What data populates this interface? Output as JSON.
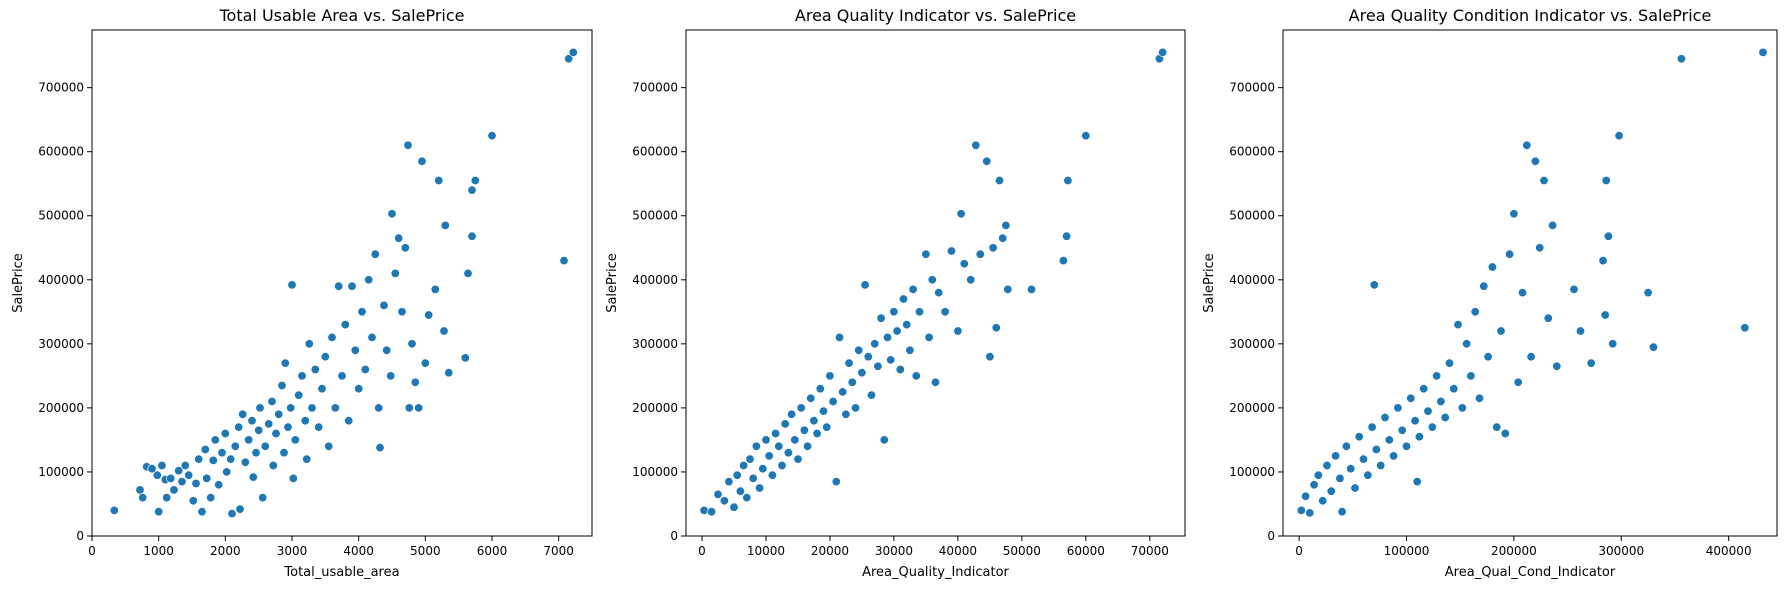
{
  "chart_data": [
    {
      "type": "scatter",
      "title": "Total Usable Area vs. SalePrice",
      "xlabel": "Total_usable_area",
      "ylabel": "SalePrice",
      "xlim": [
        0,
        7500
      ],
      "ylim": [
        0,
        790000
      ],
      "xticks": [
        0,
        1000,
        2000,
        3000,
        4000,
        5000,
        6000,
        7000
      ],
      "yticks": [
        0,
        100000,
        200000,
        300000,
        400000,
        500000,
        600000,
        700000
      ],
      "marker_color": "#1f77b4",
      "grid": false,
      "points": [
        [
          334,
          40000
        ],
        [
          720,
          72000
        ],
        [
          760,
          60000
        ],
        [
          820,
          108000
        ],
        [
          900,
          105000
        ],
        [
          980,
          95000
        ],
        [
          1000,
          38000
        ],
        [
          1050,
          110000
        ],
        [
          1100,
          88000
        ],
        [
          1120,
          60000
        ],
        [
          1180,
          90000
        ],
        [
          1230,
          72000
        ],
        [
          1300,
          102000
        ],
        [
          1350,
          85000
        ],
        [
          1400,
          110000
        ],
        [
          1450,
          95000
        ],
        [
          1520,
          55000
        ],
        [
          1560,
          82000
        ],
        [
          1600,
          120000
        ],
        [
          1650,
          38000
        ],
        [
          1700,
          135000
        ],
        [
          1720,
          90000
        ],
        [
          1780,
          60000
        ],
        [
          1820,
          118000
        ],
        [
          1850,
          150000
        ],
        [
          1900,
          80000
        ],
        [
          1950,
          130000
        ],
        [
          2000,
          160000
        ],
        [
          2020,
          100000
        ],
        [
          2080,
          120000
        ],
        [
          2100,
          35000
        ],
        [
          2150,
          140000
        ],
        [
          2200,
          170000
        ],
        [
          2220,
          42000
        ],
        [
          2260,
          190000
        ],
        [
          2300,
          115000
        ],
        [
          2350,
          150000
        ],
        [
          2400,
          180000
        ],
        [
          2420,
          92000
        ],
        [
          2460,
          130000
        ],
        [
          2500,
          165000
        ],
        [
          2520,
          200000
        ],
        [
          2560,
          60000
        ],
        [
          2600,
          140000
        ],
        [
          2650,
          175000
        ],
        [
          2700,
          210000
        ],
        [
          2720,
          110000
        ],
        [
          2760,
          160000
        ],
        [
          2800,
          190000
        ],
        [
          2850,
          235000
        ],
        [
          2880,
          130000
        ],
        [
          2900,
          270000
        ],
        [
          2940,
          170000
        ],
        [
          2980,
          200000
        ],
        [
          3000,
          392000
        ],
        [
          3020,
          90000
        ],
        [
          3050,
          150000
        ],
        [
          3100,
          220000
        ],
        [
          3150,
          250000
        ],
        [
          3200,
          180000
        ],
        [
          3220,
          120000
        ],
        [
          3260,
          300000
        ],
        [
          3300,
          200000
        ],
        [
          3350,
          260000
        ],
        [
          3400,
          170000
        ],
        [
          3450,
          230000
        ],
        [
          3500,
          280000
        ],
        [
          3550,
          140000
        ],
        [
          3600,
          310000
        ],
        [
          3650,
          200000
        ],
        [
          3700,
          390000
        ],
        [
          3750,
          250000
        ],
        [
          3800,
          330000
        ],
        [
          3850,
          180000
        ],
        [
          3900,
          390000
        ],
        [
          3950,
          290000
        ],
        [
          4000,
          230000
        ],
        [
          4050,
          350000
        ],
        [
          4100,
          260000
        ],
        [
          4150,
          400000
        ],
        [
          4200,
          310000
        ],
        [
          4250,
          440000
        ],
        [
          4300,
          200000
        ],
        [
          4320,
          138000
        ],
        [
          4380,
          360000
        ],
        [
          4420,
          290000
        ],
        [
          4480,
          250000
        ],
        [
          4500,
          503000
        ],
        [
          4550,
          410000
        ],
        [
          4600,
          465000
        ],
        [
          4650,
          350000
        ],
        [
          4700,
          450000
        ],
        [
          4740,
          610000
        ],
        [
          4760,
          200000
        ],
        [
          4800,
          300000
        ],
        [
          4850,
          240000
        ],
        [
          4900,
          200000
        ],
        [
          4950,
          585000
        ],
        [
          5000,
          270000
        ],
        [
          5050,
          345000
        ],
        [
          5150,
          385000
        ],
        [
          5200,
          555000
        ],
        [
          5280,
          320000
        ],
        [
          5300,
          485000
        ],
        [
          5350,
          255000
        ],
        [
          5600,
          278000
        ],
        [
          5640,
          410000
        ],
        [
          5700,
          468000
        ],
        [
          5700,
          540000
        ],
        [
          5750,
          555000
        ],
        [
          6000,
          625000
        ],
        [
          7080,
          430000
        ],
        [
          7150,
          745000
        ],
        [
          7220,
          755000
        ]
      ]
    },
    {
      "type": "scatter",
      "title": "Area Quality Indicator vs. SalePrice",
      "xlabel": "Area_Quality_Indicator",
      "ylabel": "SalePrice",
      "xlim": [
        -2500,
        75500
      ],
      "ylim": [
        0,
        790000
      ],
      "xticks": [
        0,
        10000,
        20000,
        30000,
        40000,
        50000,
        60000,
        70000
      ],
      "yticks": [
        0,
        100000,
        200000,
        300000,
        400000,
        500000,
        600000,
        700000
      ],
      "marker_color": "#1f77b4",
      "grid": false,
      "points": [
        [
          334,
          40000
        ],
        [
          1500,
          38000
        ],
        [
          2500,
          65000
        ],
        [
          3500,
          55000
        ],
        [
          4200,
          85000
        ],
        [
          5000,
          45000
        ],
        [
          5500,
          95000
        ],
        [
          6000,
          70000
        ],
        [
          6500,
          110000
        ],
        [
          7000,
          60000
        ],
        [
          7500,
          120000
        ],
        [
          8000,
          90000
        ],
        [
          8500,
          140000
        ],
        [
          9000,
          75000
        ],
        [
          9500,
          105000
        ],
        [
          10000,
          150000
        ],
        [
          10500,
          125000
        ],
        [
          11000,
          95000
        ],
        [
          11500,
          160000
        ],
        [
          12000,
          140000
        ],
        [
          12500,
          110000
        ],
        [
          13000,
          175000
        ],
        [
          13500,
          130000
        ],
        [
          14000,
          190000
        ],
        [
          14500,
          150000
        ],
        [
          15000,
          120000
        ],
        [
          15500,
          200000
        ],
        [
          16000,
          165000
        ],
        [
          16500,
          140000
        ],
        [
          17000,
          215000
        ],
        [
          17500,
          180000
        ],
        [
          18000,
          160000
        ],
        [
          18500,
          230000
        ],
        [
          19000,
          195000
        ],
        [
          19500,
          170000
        ],
        [
          20000,
          250000
        ],
        [
          20500,
          210000
        ],
        [
          21000,
          85000
        ],
        [
          21500,
          310000
        ],
        [
          22000,
          225000
        ],
        [
          22500,
          190000
        ],
        [
          23000,
          270000
        ],
        [
          23500,
          240000
        ],
        [
          24000,
          200000
        ],
        [
          24500,
          290000
        ],
        [
          25000,
          255000
        ],
        [
          25500,
          392000
        ],
        [
          26000,
          280000
        ],
        [
          26500,
          220000
        ],
        [
          27000,
          300000
        ],
        [
          27500,
          265000
        ],
        [
          28000,
          340000
        ],
        [
          28500,
          150000
        ],
        [
          29000,
          310000
        ],
        [
          29500,
          275000
        ],
        [
          30000,
          350000
        ],
        [
          30500,
          320000
        ],
        [
          31000,
          260000
        ],
        [
          31500,
          370000
        ],
        [
          32000,
          330000
        ],
        [
          32500,
          290000
        ],
        [
          33000,
          385000
        ],
        [
          33500,
          250000
        ],
        [
          34000,
          350000
        ],
        [
          35000,
          440000
        ],
        [
          35500,
          310000
        ],
        [
          36000,
          400000
        ],
        [
          36500,
          240000
        ],
        [
          37000,
          380000
        ],
        [
          38000,
          350000
        ],
        [
          39000,
          445000
        ],
        [
          40000,
          320000
        ],
        [
          40500,
          503000
        ],
        [
          41000,
          425000
        ],
        [
          42000,
          400000
        ],
        [
          42800,
          610000
        ],
        [
          43500,
          440000
        ],
        [
          44500,
          585000
        ],
        [
          45000,
          280000
        ],
        [
          45500,
          450000
        ],
        [
          46000,
          325000
        ],
        [
          46500,
          555000
        ],
        [
          47000,
          465000
        ],
        [
          47500,
          485000
        ],
        [
          47800,
          385000
        ],
        [
          51500,
          385000
        ],
        [
          56500,
          430000
        ],
        [
          57000,
          468000
        ],
        [
          57200,
          555000
        ],
        [
          60000,
          625000
        ],
        [
          71500,
          745000
        ],
        [
          72000,
          755000
        ]
      ]
    },
    {
      "type": "scatter",
      "title": "Area Quality Condition Indicator vs. SalePrice",
      "xlabel": "Area_Qual_Cond_Indicator",
      "ylabel": "SalePrice",
      "xlim": [
        -15000,
        445000
      ],
      "ylim": [
        0,
        790000
      ],
      "xticks": [
        0,
        100000,
        200000,
        300000,
        400000
      ],
      "yticks": [
        0,
        100000,
        200000,
        300000,
        400000,
        500000,
        600000,
        700000
      ],
      "marker_color": "#1f77b4",
      "grid": false,
      "points": [
        [
          2000,
          40000
        ],
        [
          6000,
          62000
        ],
        [
          10000,
          36000
        ],
        [
          14000,
          80000
        ],
        [
          18000,
          95000
        ],
        [
          22000,
          55000
        ],
        [
          26000,
          110000
        ],
        [
          30000,
          70000
        ],
        [
          34000,
          125000
        ],
        [
          38000,
          90000
        ],
        [
          40000,
          38000
        ],
        [
          44000,
          140000
        ],
        [
          48000,
          105000
        ],
        [
          52000,
          75000
        ],
        [
          56000,
          155000
        ],
        [
          60000,
          120000
        ],
        [
          64000,
          95000
        ],
        [
          68000,
          170000
        ],
        [
          70000,
          392000
        ],
        [
          72000,
          135000
        ],
        [
          76000,
          110000
        ],
        [
          80000,
          185000
        ],
        [
          84000,
          150000
        ],
        [
          88000,
          125000
        ],
        [
          92000,
          200000
        ],
        [
          96000,
          165000
        ],
        [
          100000,
          140000
        ],
        [
          104000,
          215000
        ],
        [
          108000,
          180000
        ],
        [
          110000,
          85000
        ],
        [
          112000,
          155000
        ],
        [
          116000,
          230000
        ],
        [
          120000,
          195000
        ],
        [
          124000,
          170000
        ],
        [
          128000,
          250000
        ],
        [
          132000,
          210000
        ],
        [
          136000,
          185000
        ],
        [
          140000,
          270000
        ],
        [
          144000,
          230000
        ],
        [
          148000,
          330000
        ],
        [
          152000,
          200000
        ],
        [
          156000,
          300000
        ],
        [
          160000,
          250000
        ],
        [
          164000,
          350000
        ],
        [
          168000,
          215000
        ],
        [
          172000,
          390000
        ],
        [
          176000,
          280000
        ],
        [
          180000,
          420000
        ],
        [
          184000,
          170000
        ],
        [
          188000,
          320000
        ],
        [
          192000,
          160000
        ],
        [
          196000,
          440000
        ],
        [
          200000,
          503000
        ],
        [
          204000,
          240000
        ],
        [
          208000,
          380000
        ],
        [
          212000,
          610000
        ],
        [
          216000,
          280000
        ],
        [
          220000,
          585000
        ],
        [
          224000,
          450000
        ],
        [
          228000,
          555000
        ],
        [
          232000,
          340000
        ],
        [
          236000,
          485000
        ],
        [
          240000,
          265000
        ],
        [
          256000,
          385000
        ],
        [
          262000,
          320000
        ],
        [
          272000,
          270000
        ],
        [
          283000,
          430000
        ],
        [
          285000,
          345000
        ],
        [
          286000,
          555000
        ],
        [
          288000,
          468000
        ],
        [
          292000,
          300000
        ],
        [
          298000,
          625000
        ],
        [
          325000,
          380000
        ],
        [
          330000,
          295000
        ],
        [
          356000,
          745000
        ],
        [
          415000,
          325000
        ],
        [
          432000,
          755000
        ]
      ]
    }
  ]
}
